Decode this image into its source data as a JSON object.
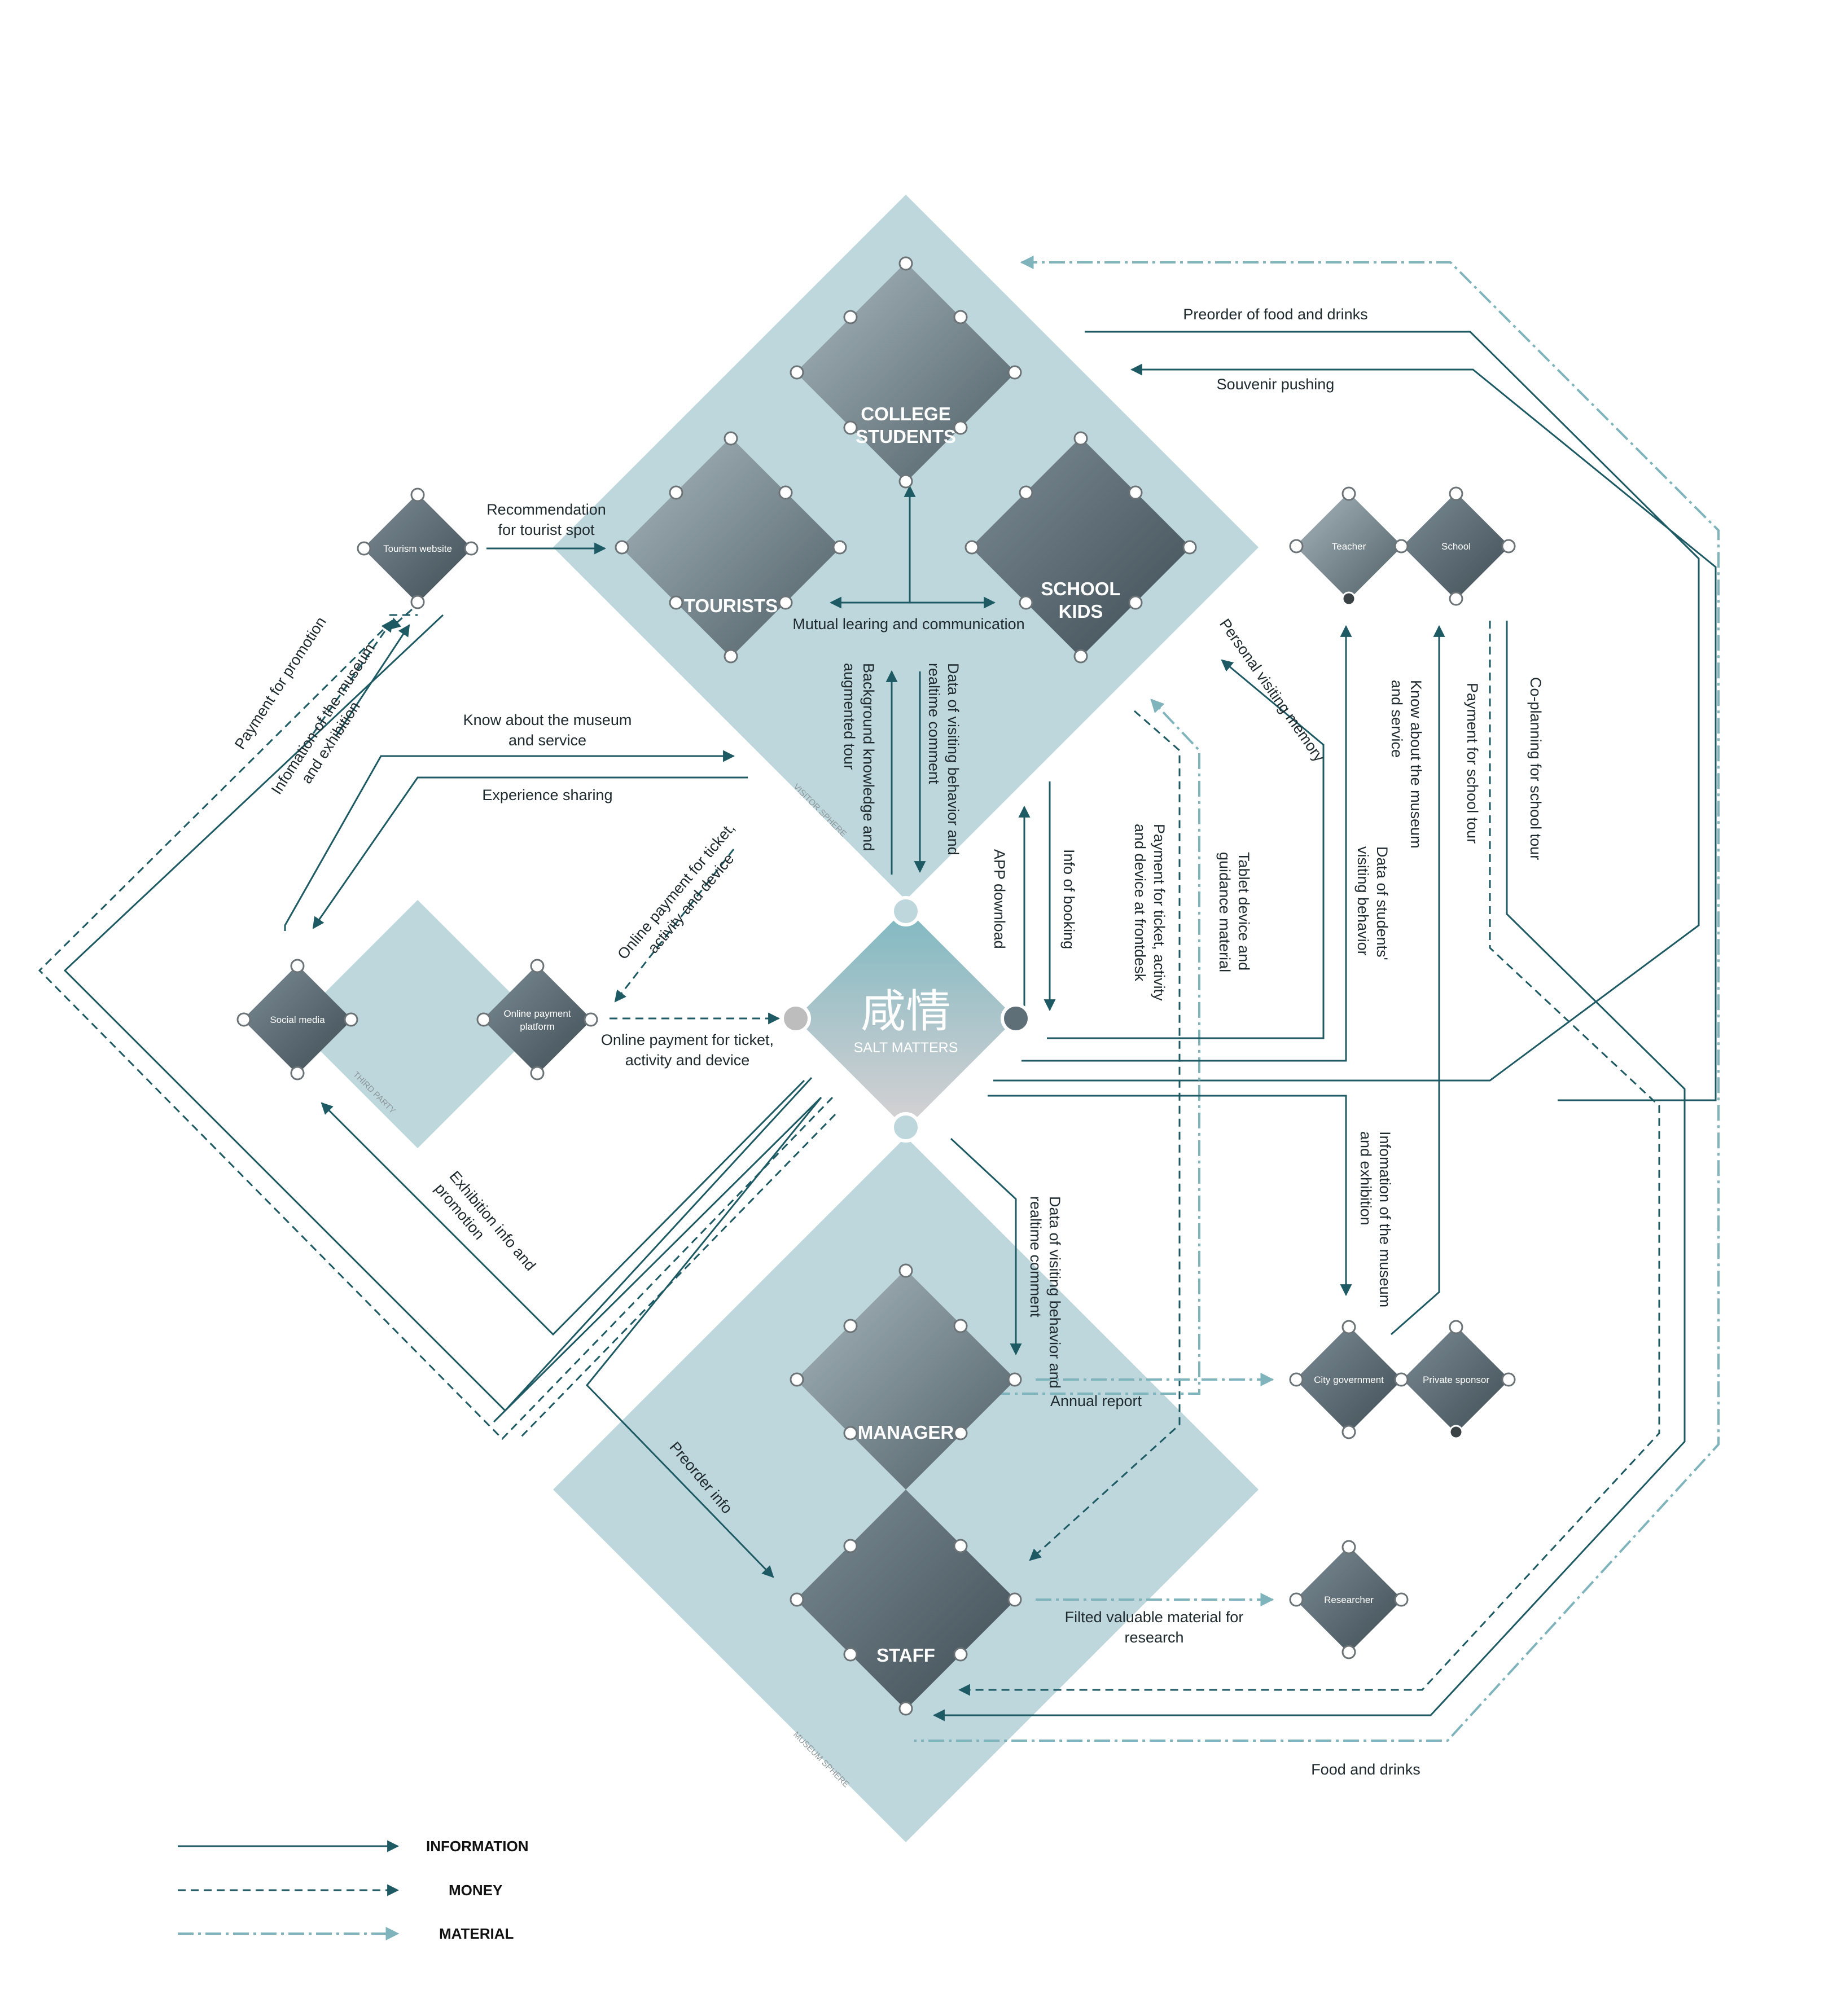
{
  "colors": {
    "sphere_fill": "#bdd7dc",
    "information": "#1d5a63",
    "money": "#1d5a63",
    "material": "#7fb4bd",
    "photo_tone": "#5f6f77"
  },
  "nodes": {
    "college_students": "COLLEGE\nSTUDENTS",
    "tourists": "TOURISTS",
    "school_kids": "SCHOOL\nKIDS",
    "manager": "MANAGER",
    "staff": "STAFF",
    "tourism_website": "Tourism website",
    "social_media": "Social media",
    "online_payment_platform": "Online payment\nplatform",
    "teacher": "Teacher",
    "school": "School",
    "city_government": "City government",
    "private_sponsor": "Private sponsor",
    "researcher": "Researcher"
  },
  "center": {
    "logo_glyphs": "咸情",
    "logo_text": "SALT MATTERS"
  },
  "spheres": {
    "visitor": "VISITOR SPHERE",
    "third_party": "THIRD PARTY",
    "museum": "MUSEUM SPHERE"
  },
  "flows": {
    "recommendation": "Recommendation\nfor tourist spot",
    "mutual_learning": "Mutual learing and communication",
    "preorder_food": "Preorder of food and drinks",
    "souvenir_pushing": "Souvenir pushing",
    "payment_promotion": "Payment for promotion",
    "info_museum_exhibition_website": "Infomation of the museum\nand exhibition",
    "know_museum_service": "Know about the museum\nand service",
    "experience_sharing": "Experience sharing",
    "background_knowledge": "Background knowledge and\naugmented tour",
    "data_visiting_behavior_top": "Data of visiting behavior and\nrealtime comment",
    "app_download": "APP download",
    "info_booking": "Info of booking",
    "payment_frontdesk": "Payment for ticket, activity\nand device at frontdesk",
    "tablet_device": "Tablet device and\nguidance material",
    "personal_memory": "Personal visiting memory",
    "data_students": "Data of students'\nvisiting behavior",
    "know_museum_service_school": "Know about the museum\nand service",
    "payment_school_tour": "Payment for school tour",
    "co_planning": "Co-planning for school tour",
    "online_payment_social": "Online payment for ticket,\nactivity and device",
    "online_payment_center": "Online payment for ticket,\nactivity and device",
    "exhibition_info_promotion": "Exhibition info and\npromotion",
    "info_museum_exhibition_gov": "Infomation of the museum\nand exhibition",
    "data_visiting_behavior_manager": "Data of visiting behavior and\nrealtime comment",
    "annual_report": "Annual report",
    "preorder_info": "Preorder info",
    "filtered_material": "Filted valuable material for\nresearch",
    "food_drinks": "Food and drinks"
  },
  "legend": [
    {
      "label": "INFORMATION",
      "style": "information"
    },
    {
      "label": "MONEY",
      "style": "money"
    },
    {
      "label": "MATERIAL",
      "style": "material"
    }
  ]
}
